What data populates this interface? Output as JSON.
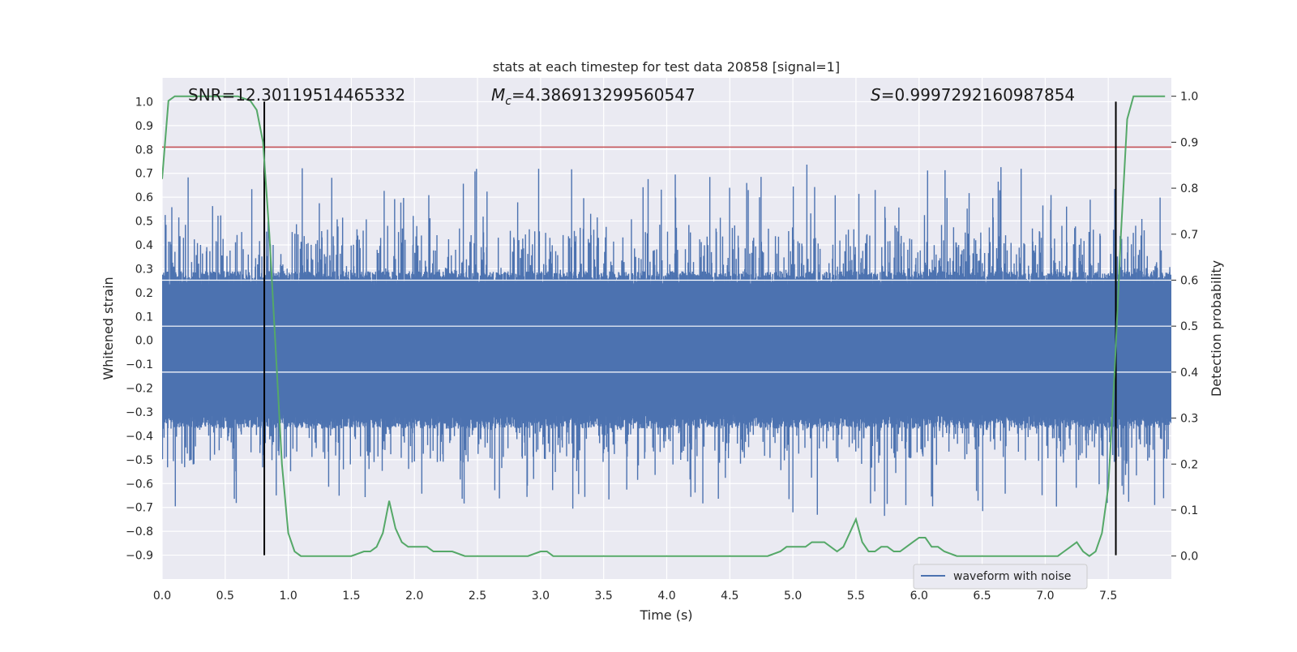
{
  "chart_data": {
    "type": "line",
    "title": "stats at each timestep for test data 20858 [signal=1]",
    "xlabel": "Time (s)",
    "ylabel_left": "Whitened strain",
    "ylabel_right": "Detection probability",
    "xlim": [
      0.0,
      8.0
    ],
    "ylim_left": [
      -1.0,
      1.1
    ],
    "ylim_right": [
      -0.05,
      1.04
    ],
    "x_ticks": [
      "0.0",
      "0.5",
      "1.0",
      "1.5",
      "2.0",
      "2.5",
      "3.0",
      "3.5",
      "4.0",
      "4.5",
      "5.0",
      "5.5",
      "6.0",
      "6.5",
      "7.0",
      "7.5"
    ],
    "x_tick_values": [
      0.0,
      0.5,
      1.0,
      1.5,
      2.0,
      2.5,
      3.0,
      3.5,
      4.0,
      4.5,
      5.0,
      5.5,
      6.0,
      6.5,
      7.0,
      7.5
    ],
    "y_left_ticks": [
      "1.0",
      "0.9",
      "0.8",
      "0.7",
      "0.6",
      "0.5",
      "0.4",
      "0.3",
      "0.2",
      "0.1",
      "0.0",
      "−0.1",
      "−0.2",
      "−0.3",
      "−0.4",
      "−0.5",
      "−0.6",
      "−0.7",
      "−0.8",
      "−0.9"
    ],
    "y_left_tick_values": [
      1.0,
      0.9,
      0.8,
      0.7,
      0.6,
      0.5,
      0.4,
      0.3,
      0.2,
      0.1,
      0.0,
      -0.1,
      -0.2,
      -0.3,
      -0.4,
      -0.5,
      -0.6,
      -0.7,
      -0.8,
      -0.9
    ],
    "y_right_ticks": [
      "1.0",
      "0.9",
      "0.8",
      "0.7",
      "0.6",
      "0.5",
      "0.4",
      "0.3",
      "0.2",
      "0.1",
      "0.0"
    ],
    "y_right_tick_values": [
      1.0,
      0.9,
      0.8,
      0.7,
      0.6,
      0.5,
      0.4,
      0.3,
      0.2,
      0.1,
      0.0
    ],
    "grid": true,
    "legend_position": "lower-right",
    "annotations": {
      "snr": "SNR=12.30119514465332",
      "mc_symbol": "M",
      "mc_sub": "c",
      "mc_value": "=4.386913299560547",
      "s_symbol": "S",
      "s_value": "=0.9997292160987854"
    },
    "threshold": {
      "value": 0.81,
      "axis": "left",
      "color": "#c44e52"
    },
    "vertical_markers": [
      {
        "x": 0.81,
        "y_from": -0.9,
        "y_to": 1.0,
        "color": "#000000"
      },
      {
        "x": 7.56,
        "y_from": -0.9,
        "y_to": 1.0,
        "color": "#000000"
      }
    ],
    "series": [
      {
        "name": "waveform with noise",
        "axis": "left",
        "color": "#4c72b0",
        "summary": "noise band between about -0.33 and 0.24 with spikes reaching about 0.82 and -0.74"
      },
      {
        "name": "",
        "axis": "right",
        "color": "#55a868",
        "x": [
          0.0,
          0.05,
          0.1,
          0.2,
          0.3,
          0.4,
          0.5,
          0.6,
          0.7,
          0.75,
          0.8,
          0.85,
          0.9,
          0.95,
          1.0,
          1.05,
          1.1,
          1.2,
          1.3,
          1.4,
          1.5,
          1.6,
          1.65,
          1.7,
          1.75,
          1.8,
          1.85,
          1.9,
          1.95,
          2.0,
          2.05,
          2.1,
          2.15,
          2.2,
          2.3,
          2.4,
          2.5,
          2.6,
          2.7,
          2.8,
          2.9,
          3.0,
          3.05,
          3.1,
          3.15,
          3.2,
          3.3,
          3.4,
          3.5,
          3.6,
          3.7,
          3.8,
          3.9,
          4.0,
          4.1,
          4.2,
          4.3,
          4.4,
          4.5,
          4.6,
          4.7,
          4.8,
          4.9,
          4.95,
          5.0,
          5.1,
          5.15,
          5.2,
          5.25,
          5.3,
          5.35,
          5.4,
          5.45,
          5.5,
          5.55,
          5.6,
          5.65,
          5.7,
          5.75,
          5.8,
          5.85,
          5.9,
          5.95,
          6.0,
          6.05,
          6.1,
          6.15,
          6.2,
          6.3,
          6.4,
          6.5,
          6.6,
          6.7,
          6.8,
          6.9,
          7.0,
          7.1,
          7.15,
          7.2,
          7.25,
          7.3,
          7.35,
          7.4,
          7.45,
          7.5,
          7.55,
          7.6,
          7.65,
          7.7,
          7.75,
          7.8,
          7.9,
          7.95
        ],
        "values": [
          0.82,
          0.99,
          1.0,
          1.0,
          1.0,
          1.0,
          1.0,
          1.0,
          0.99,
          0.97,
          0.9,
          0.7,
          0.45,
          0.2,
          0.05,
          0.01,
          0.0,
          0.0,
          0.0,
          0.0,
          0.0,
          0.01,
          0.01,
          0.02,
          0.05,
          0.12,
          0.06,
          0.03,
          0.02,
          0.02,
          0.02,
          0.02,
          0.01,
          0.01,
          0.01,
          0.0,
          0.0,
          0.0,
          0.0,
          0.0,
          0.0,
          0.01,
          0.01,
          0.0,
          0.0,
          0.0,
          0.0,
          0.0,
          0.0,
          0.0,
          0.0,
          0.0,
          0.0,
          0.0,
          0.0,
          0.0,
          0.0,
          0.0,
          0.0,
          0.0,
          0.0,
          0.0,
          0.01,
          0.02,
          0.02,
          0.02,
          0.03,
          0.03,
          0.03,
          0.02,
          0.01,
          0.02,
          0.05,
          0.08,
          0.03,
          0.01,
          0.01,
          0.02,
          0.02,
          0.01,
          0.01,
          0.02,
          0.03,
          0.04,
          0.04,
          0.02,
          0.02,
          0.01,
          0.0,
          0.0,
          0.0,
          0.0,
          0.0,
          0.0,
          0.0,
          0.0,
          0.0,
          0.01,
          0.02,
          0.03,
          0.01,
          0.0,
          0.01,
          0.05,
          0.15,
          0.4,
          0.7,
          0.95,
          1.0,
          1.0,
          1.0,
          1.0,
          1.0
        ]
      }
    ]
  }
}
